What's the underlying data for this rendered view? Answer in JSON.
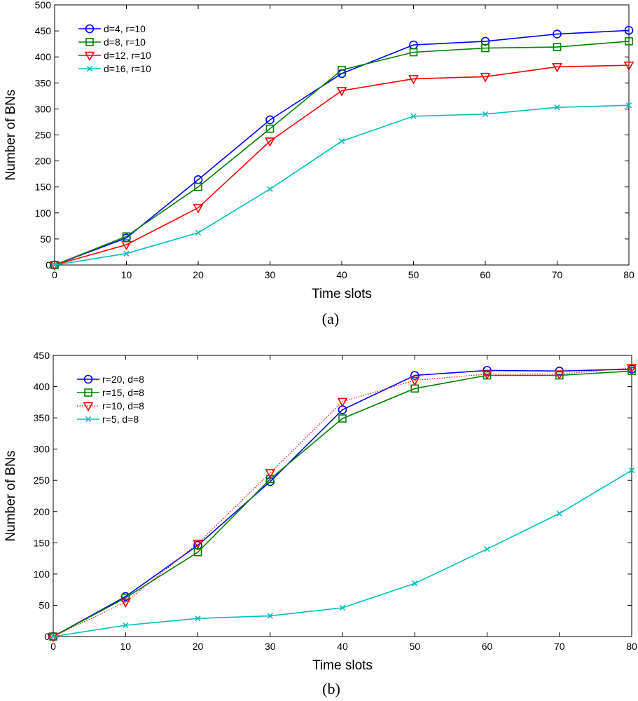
{
  "chart_data": [
    {
      "type": "line",
      "caption": "(a)",
      "xlabel": "Time slots",
      "ylabel": "Number of BNs",
      "xlim": [
        0,
        80
      ],
      "ylim": [
        0,
        500
      ],
      "xticks": [
        0,
        10,
        20,
        30,
        40,
        50,
        60,
        70,
        80
      ],
      "yticks": [
        0,
        50,
        100,
        150,
        200,
        250,
        300,
        350,
        400,
        450,
        500
      ],
      "grid": false,
      "legend_position": "top-left",
      "x": [
        0,
        10,
        20,
        30,
        40,
        50,
        60,
        70,
        80
      ],
      "series": [
        {
          "name": "d=4, r=10",
          "color": "#0000ff",
          "marker": "circle",
          "dash": "solid",
          "values": [
            0,
            52,
            164,
            279,
            368,
            423,
            430,
            444,
            451
          ]
        },
        {
          "name": "d=8, r=10",
          "color": "#008000",
          "marker": "square",
          "dash": "solid",
          "values": [
            0,
            55,
            150,
            262,
            375,
            409,
            417,
            419,
            430
          ]
        },
        {
          "name": "d=12, r=10",
          "color": "#ff0000",
          "marker": "triangle-down",
          "dash": "solid",
          "values": [
            0,
            39,
            110,
            238,
            335,
            358,
            362,
            381,
            384
          ]
        },
        {
          "name": "d=16, r=10",
          "color": "#00bfbf",
          "marker": "x",
          "dash": "solid",
          "values": [
            0,
            22,
            62,
            146,
            238,
            286,
            290,
            303,
            307
          ]
        }
      ]
    },
    {
      "type": "line",
      "caption": "(b)",
      "xlabel": "Time slots",
      "ylabel": "Number of BNs",
      "xlim": [
        0,
        80
      ],
      "ylim": [
        0,
        450
      ],
      "xticks": [
        0,
        10,
        20,
        30,
        40,
        50,
        60,
        70,
        80
      ],
      "yticks": [
        0,
        50,
        100,
        150,
        200,
        250,
        300,
        350,
        400,
        450
      ],
      "grid": false,
      "legend_position": "top-left",
      "x": [
        0,
        10,
        20,
        30,
        40,
        50,
        60,
        70,
        80
      ],
      "series": [
        {
          "name": "r=20, d=8",
          "color": "#0000ff",
          "marker": "circle",
          "dash": "solid",
          "values": [
            0,
            64,
            146,
            248,
            363,
            418,
            426,
            425,
            428
          ]
        },
        {
          "name": "r=15, d=8",
          "color": "#008000",
          "marker": "square",
          "dash": "solid",
          "values": [
            0,
            62,
            135,
            252,
            349,
            397,
            418,
            418,
            425
          ]
        },
        {
          "name": "r=10, d=8",
          "color": "#ff0000",
          "marker": "triangle-down",
          "dash": "dotted",
          "values": [
            0,
            55,
            149,
            262,
            376,
            410,
            420,
            420,
            430
          ]
        },
        {
          "name": "r=5, d=8",
          "color": "#00bfbf",
          "marker": "x",
          "dash": "solid",
          "values": [
            0,
            18,
            29,
            33,
            46,
            85,
            140,
            197,
            266
          ]
        }
      ]
    }
  ]
}
